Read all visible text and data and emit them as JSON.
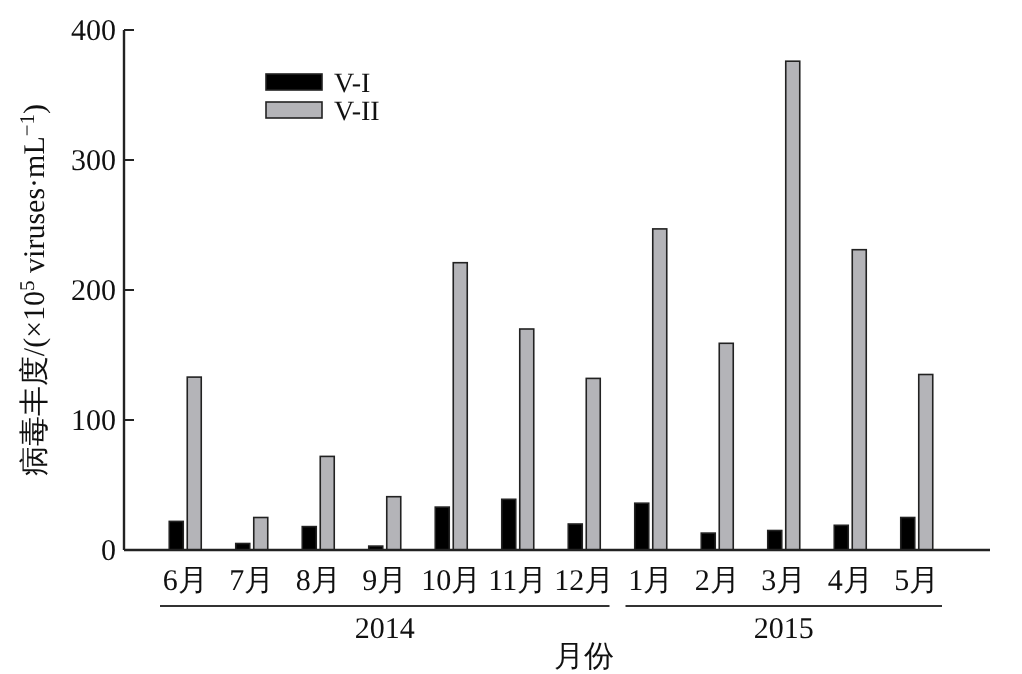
{
  "chart_data": {
    "type": "bar",
    "xlabel": "月份",
    "ylabel": "病毒丰度/(×10$^{5}$ viruses·mL$^{−1}$)",
    "categories": [
      "6月",
      "7月",
      "8月",
      "9月",
      "10月",
      "11月",
      "12月",
      "1月",
      "2月",
      "3月",
      "4月",
      "5月"
    ],
    "series": [
      {
        "name": "V-I",
        "color": "#000000",
        "values": [
          22,
          5,
          18,
          3,
          33,
          39,
          20,
          36,
          13,
          15,
          19,
          25
        ]
      },
      {
        "name": "V-II",
        "color": "#b4b4b8",
        "values": [
          133,
          25,
          72,
          41,
          221,
          170,
          132,
          247,
          159,
          376,
          231,
          135
        ]
      }
    ],
    "ylim": [
      0,
      400
    ],
    "yticks": [
      0,
      100,
      200,
      300,
      400
    ],
    "grid": false,
    "legend": "top left",
    "annotations": [
      "2014",
      "2015"
    ]
  }
}
